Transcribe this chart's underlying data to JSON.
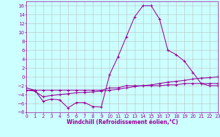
{
  "x": [
    0,
    1,
    2,
    3,
    4,
    5,
    6,
    7,
    8,
    9,
    10,
    11,
    12,
    13,
    14,
    15,
    16,
    17,
    18,
    19,
    20,
    21,
    22,
    23
  ],
  "line1": [
    -2.5,
    -3.0,
    -5.5,
    -5.0,
    -5.2,
    -7.0,
    -5.8,
    -5.8,
    -6.7,
    -6.8,
    0.5,
    4.5,
    9.0,
    13.5,
    16.0,
    16.0,
    13.0,
    6.0,
    5.0,
    3.5,
    1.0,
    -1.5,
    -2.0,
    -2.0
  ],
  "line2": [
    -3.0,
    -3.0,
    -3.0,
    -3.0,
    -3.0,
    -3.0,
    -3.0,
    -3.0,
    -3.0,
    -3.0,
    -2.5,
    -2.5,
    -2.0,
    -2.0,
    -2.0,
    -2.0,
    -2.0,
    -1.8,
    -1.8,
    -1.5,
    -1.5,
    -1.5,
    -1.5,
    -1.5
  ],
  "line3": [
    -3.0,
    -3.2,
    -4.5,
    -4.2,
    -4.0,
    -3.8,
    -3.6,
    -3.5,
    -3.4,
    -3.2,
    -3.0,
    -2.8,
    -2.5,
    -2.2,
    -2.0,
    -1.8,
    -1.5,
    -1.2,
    -1.0,
    -0.8,
    -0.5,
    -0.3,
    -0.2,
    -0.0
  ],
  "color": "#990099",
  "background_color": "#ccffff",
  "grid_color": "#bbbbbb",
  "ylim": [
    -8,
    17
  ],
  "xlim": [
    0,
    23
  ],
  "yticks": [
    -8,
    -6,
    -4,
    -2,
    0,
    2,
    4,
    6,
    8,
    10,
    12,
    14,
    16
  ],
  "xticks": [
    0,
    1,
    2,
    3,
    4,
    5,
    6,
    7,
    8,
    9,
    10,
    11,
    12,
    13,
    14,
    15,
    16,
    17,
    18,
    19,
    20,
    21,
    22,
    23
  ],
  "xlabel": "Windchill (Refroidissement éolien,°C)",
  "xlabel_fontsize": 5.5,
  "tick_fontsize": 5.0,
  "marker": "+",
  "markersize": 3,
  "linewidth": 0.8
}
